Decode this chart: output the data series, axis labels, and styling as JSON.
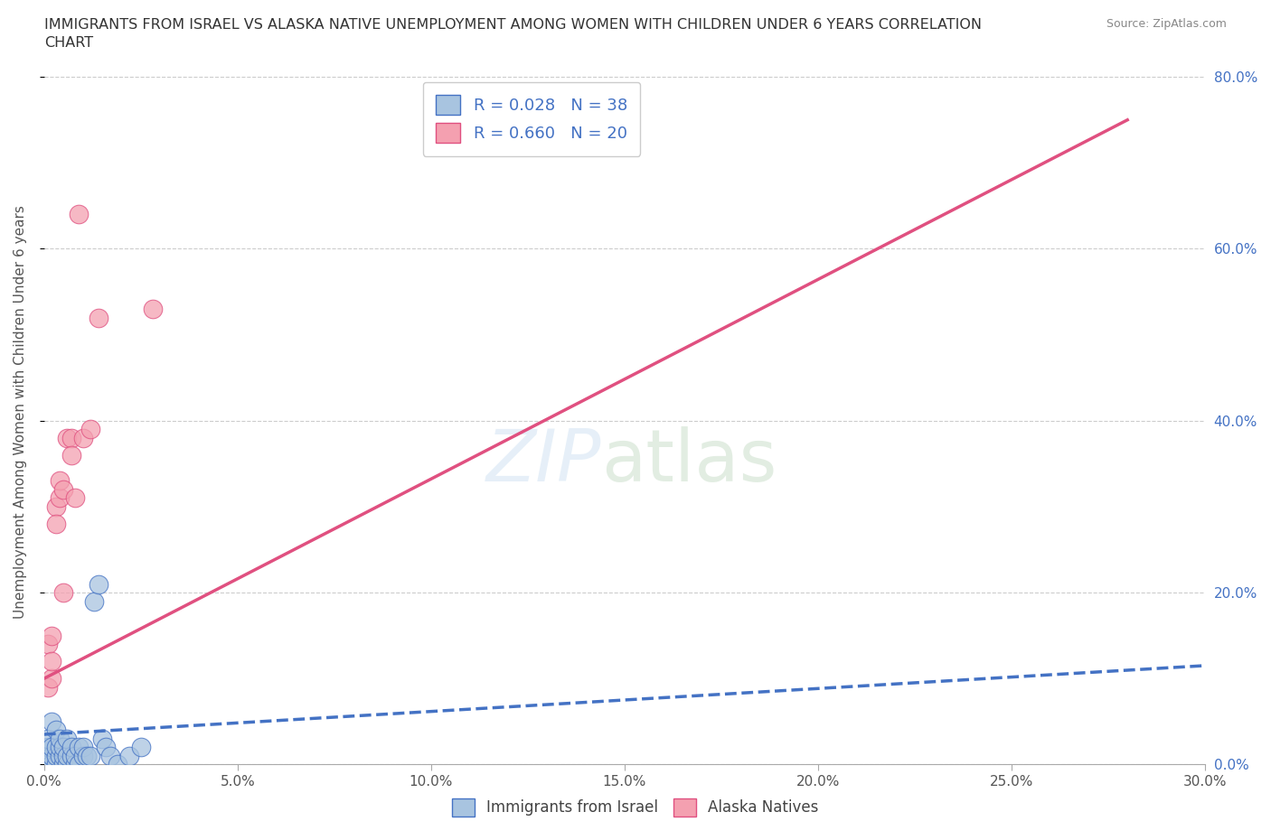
{
  "title_line1": "IMMIGRANTS FROM ISRAEL VS ALASKA NATIVE UNEMPLOYMENT AMONG WOMEN WITH CHILDREN UNDER 6 YEARS CORRELATION",
  "title_line2": "CHART",
  "source": "Source: ZipAtlas.com",
  "xlabel_ticks": [
    "0.0%",
    "5.0%",
    "10.0%",
    "15.0%",
    "20.0%",
    "25.0%",
    "30.0%"
  ],
  "ylabel_ticks": [
    "0.0%",
    "20.0%",
    "40.0%",
    "60.0%",
    "80.0%"
  ],
  "ylabel_label": "Unemployment Among Women with Children Under 6 years",
  "xmin": 0.0,
  "xmax": 0.3,
  "ymin": 0.0,
  "ymax": 0.82,
  "blue_label": "Immigrants from Israel",
  "pink_label": "Alaska Natives",
  "blue_R": 0.028,
  "blue_N": 38,
  "pink_R": 0.66,
  "pink_N": 20,
  "blue_color": "#a8c4e0",
  "pink_color": "#f4a0b0",
  "blue_trend_color": "#4472c4",
  "pink_trend_color": "#e05080",
  "blue_scatter_x": [
    0.001,
    0.001,
    0.001,
    0.002,
    0.002,
    0.002,
    0.002,
    0.003,
    0.003,
    0.003,
    0.003,
    0.004,
    0.004,
    0.004,
    0.005,
    0.005,
    0.005,
    0.006,
    0.006,
    0.006,
    0.007,
    0.007,
    0.008,
    0.008,
    0.009,
    0.009,
    0.01,
    0.01,
    0.011,
    0.012,
    0.013,
    0.014,
    0.015,
    0.016,
    0.017,
    0.019,
    0.022,
    0.025
  ],
  "blue_scatter_y": [
    0.01,
    0.02,
    0.03,
    0.0,
    0.01,
    0.02,
    0.05,
    0.0,
    0.01,
    0.02,
    0.04,
    0.01,
    0.02,
    0.03,
    0.0,
    0.01,
    0.02,
    0.0,
    0.01,
    0.03,
    0.01,
    0.02,
    0.0,
    0.01,
    0.0,
    0.02,
    0.01,
    0.02,
    0.01,
    0.01,
    0.19,
    0.21,
    0.03,
    0.02,
    0.01,
    0.0,
    0.01,
    0.02
  ],
  "pink_scatter_x": [
    0.001,
    0.001,
    0.002,
    0.002,
    0.002,
    0.003,
    0.003,
    0.004,
    0.004,
    0.005,
    0.005,
    0.006,
    0.007,
    0.007,
    0.008,
    0.009,
    0.01,
    0.012,
    0.014,
    0.028
  ],
  "pink_scatter_y": [
    0.14,
    0.09,
    0.1,
    0.12,
    0.15,
    0.3,
    0.28,
    0.31,
    0.33,
    0.2,
    0.32,
    0.38,
    0.38,
    0.36,
    0.31,
    0.64,
    0.38,
    0.39,
    0.52,
    0.53
  ],
  "pink_trend_x0": 0.0,
  "pink_trend_y0": 0.1,
  "pink_trend_x1": 0.28,
  "pink_trend_y1": 0.75,
  "blue_trend_x0": 0.0,
  "blue_trend_y0": 0.035,
  "blue_trend_x1": 0.3,
  "blue_trend_y1": 0.115
}
